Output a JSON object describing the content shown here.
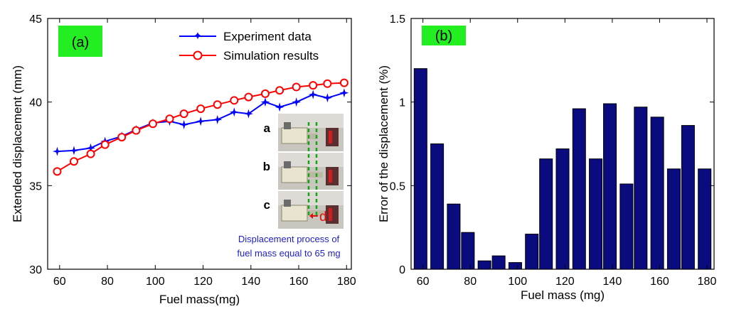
{
  "chart_data": [
    {
      "type": "line",
      "panel_label": "(a)",
      "xlabel": "Fuel mass(mg)",
      "ylabel": "Extended displacement (mm)",
      "xlim": [
        55,
        182
      ],
      "ylim": [
        30,
        45
      ],
      "xticks": [
        60,
        80,
        100,
        120,
        140,
        160,
        180
      ],
      "yticks": [
        30,
        35,
        40,
        45
      ],
      "legend_position": "top-right",
      "series": [
        {
          "name": "Experiment data",
          "color": "#0000ff",
          "marker": "star",
          "x": [
            59,
            66,
            73,
            79,
            86,
            92,
            99,
            106,
            112,
            119,
            126,
            133,
            139,
            146,
            152,
            159,
            166,
            172,
            179
          ],
          "y": [
            37.05,
            37.1,
            37.25,
            37.65,
            37.95,
            38.35,
            38.75,
            38.85,
            38.65,
            38.85,
            38.95,
            39.4,
            39.3,
            40.0,
            39.7,
            40.0,
            40.45,
            40.25,
            40.55
          ]
        },
        {
          "name": "Simulation results",
          "color": "#ff0000",
          "marker": "circle",
          "x": [
            59,
            66,
            73,
            79,
            86,
            92,
            99,
            106,
            112,
            119,
            126,
            133,
            139,
            146,
            152,
            159,
            166,
            172,
            179
          ],
          "y": [
            35.85,
            36.45,
            36.9,
            37.45,
            37.9,
            38.3,
            38.7,
            39.0,
            39.3,
            39.6,
            39.85,
            40.1,
            40.3,
            40.5,
            40.7,
            40.9,
            41.0,
            41.1,
            41.15
          ]
        }
      ],
      "inset": {
        "labels": [
          "a",
          "b",
          "c"
        ],
        "marker_label": "d",
        "caption_lines": [
          "Displacement process of",
          "fuel mass equal to 65 mg"
        ]
      }
    },
    {
      "type": "bar",
      "panel_label": "(b)",
      "xlabel": "Fuel mass (mg)",
      "ylabel": "Error of the displacement (%)",
      "xlim": [
        55,
        183
      ],
      "ylim": [
        0,
        1.5
      ],
      "xticks": [
        60,
        80,
        100,
        120,
        140,
        160,
        180
      ],
      "yticks": [
        0,
        0.5,
        1,
        1.5
      ],
      "bar_color": "#0b0b80",
      "x": [
        59,
        66,
        73,
        79,
        86,
        92,
        99,
        106,
        112,
        119,
        126,
        133,
        139,
        146,
        152,
        159,
        166,
        172,
        179
      ],
      "values": [
        1.2,
        0.75,
        0.39,
        0.22,
        0.05,
        0.08,
        0.04,
        0.21,
        0.66,
        0.72,
        0.96,
        0.66,
        0.99,
        0.51,
        0.97,
        0.91,
        0.6,
        0.86,
        0.6
      ]
    }
  ]
}
